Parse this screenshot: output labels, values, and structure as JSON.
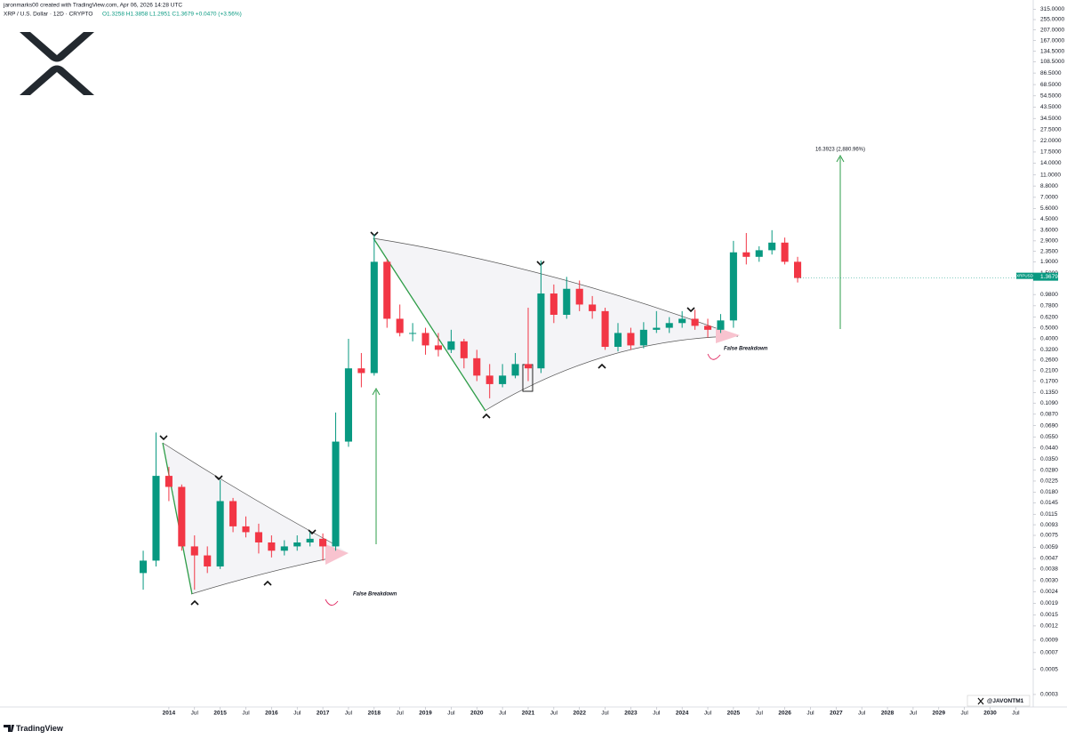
{
  "header": {
    "author_line": "jaronmarks00 created with TradingView.com, Apr 06, 2026 14:28 UTC",
    "symbol_line": "XRP / U.S. Dollar · 12D · CRYPTO",
    "ohlc_line": "O1.3258 H1.3858 L1.2951 C1.3679 +0.0470 (+3.56%)"
  },
  "chart_data": {
    "type": "candlestick",
    "log_y": true,
    "up_color": "#089981",
    "down_color": "#f23645",
    "x": [
      2013.5,
      2013.75,
      2014,
      2014.25,
      2014.5,
      2014.75,
      2015,
      2015.25,
      2015.5,
      2015.75,
      2016,
      2016.25,
      2016.5,
      2016.75,
      2017,
      2017.25,
      2017.5,
      2017.75,
      2018,
      2018.25,
      2018.5,
      2018.75,
      2019,
      2019.25,
      2019.5,
      2019.75,
      2020,
      2020.25,
      2020.5,
      2020.75,
      2021,
      2021.25,
      2021.5,
      2021.75,
      2022,
      2022.25,
      2022.5,
      2022.75,
      2023,
      2023.25,
      2023.5,
      2023.75,
      2024,
      2024.25,
      2024.5,
      2024.75,
      2025,
      2025.25,
      2025.5,
      2025.75,
      2026,
      2026.25
    ],
    "open": [
      0.0035,
      0.0045,
      0.025,
      0.02,
      0.006,
      0.005,
      0.004,
      0.015,
      0.009,
      0.008,
      0.0065,
      0.0055,
      0.006,
      0.0065,
      0.007,
      0.006,
      0.05,
      0.22,
      0.2,
      1.9,
      0.6,
      0.45,
      0.45,
      0.35,
      0.32,
      0.38,
      0.27,
      0.19,
      0.16,
      0.19,
      0.24,
      0.22,
      1.0,
      0.65,
      1.1,
      0.8,
      0.7,
      0.34,
      0.45,
      0.35,
      0.48,
      0.5,
      0.55,
      0.6,
      0.52,
      0.48,
      0.58,
      2.3,
      2.1,
      2.4,
      2.8,
      1.9
    ],
    "high": [
      0.0055,
      0.06,
      0.03,
      0.021,
      0.0075,
      0.006,
      0.023,
      0.016,
      0.011,
      0.0095,
      0.0075,
      0.0068,
      0.0075,
      0.008,
      0.0078,
      0.09,
      0.4,
      0.3,
      3.3,
      2.0,
      0.8,
      0.55,
      0.5,
      0.45,
      0.48,
      0.4,
      0.32,
      0.24,
      0.24,
      0.3,
      0.75,
      1.95,
      1.2,
      1.4,
      1.3,
      0.95,
      0.75,
      0.55,
      0.5,
      0.56,
      0.7,
      0.62,
      0.7,
      0.72,
      0.6,
      0.66,
      2.9,
      3.4,
      2.6,
      3.6,
      3.1,
      2.1
    ],
    "low": [
      0.0025,
      0.004,
      0.015,
      0.0055,
      0.0025,
      0.0035,
      0.0038,
      0.008,
      0.0072,
      0.0052,
      0.0048,
      0.005,
      0.0055,
      0.006,
      0.0045,
      0.0055,
      0.045,
      0.15,
      0.19,
      0.5,
      0.42,
      0.38,
      0.29,
      0.28,
      0.3,
      0.22,
      0.17,
      0.12,
      0.15,
      0.18,
      0.17,
      0.2,
      0.55,
      0.6,
      0.7,
      0.6,
      0.32,
      0.31,
      0.32,
      0.33,
      0.45,
      0.45,
      0.5,
      0.48,
      0.41,
      0.45,
      0.5,
      1.8,
      1.9,
      2.2,
      1.8,
      1.25
    ],
    "close": [
      0.0045,
      0.025,
      0.02,
      0.006,
      0.005,
      0.004,
      0.015,
      0.009,
      0.008,
      0.0065,
      0.0055,
      0.006,
      0.0065,
      0.007,
      0.006,
      0.05,
      0.22,
      0.2,
      1.9,
      0.6,
      0.45,
      0.45,
      0.35,
      0.32,
      0.38,
      0.27,
      0.19,
      0.16,
      0.19,
      0.24,
      0.22,
      1.0,
      0.65,
      1.1,
      0.8,
      0.7,
      0.34,
      0.45,
      0.35,
      0.48,
      0.5,
      0.55,
      0.6,
      0.52,
      0.48,
      0.58,
      2.3,
      2.1,
      2.4,
      2.8,
      1.9,
      1.3679
    ],
    "xlim": [
      2010.71,
      2030.84
    ],
    "xticks": [
      2014,
      {
        "value": 2014.5,
        "label": "Jul"
      },
      2015,
      {
        "value": 2015.5,
        "label": "Jul"
      },
      2016,
      {
        "value": 2016.5,
        "label": "Jul"
      },
      2017,
      {
        "value": 2017.5,
        "label": "Jul"
      },
      2018,
      {
        "value": 2018.5,
        "label": "Jul"
      },
      2019,
      {
        "value": 2019.5,
        "label": "Jul"
      },
      2020,
      {
        "value": 2020.5,
        "label": "Jul"
      },
      2021,
      {
        "value": 2021.5,
        "label": "Jul"
      },
      2022,
      {
        "value": 2022.5,
        "label": "Jul"
      },
      2023,
      {
        "value": 2023.5,
        "label": "Jul"
      },
      2024,
      {
        "value": 2024.5,
        "label": "Jul"
      },
      2025,
      {
        "value": 2025.5,
        "label": "Jul"
      },
      2026,
      {
        "value": 2026.5,
        "label": "Jul"
      },
      2027,
      {
        "value": 2027.5,
        "label": "Jul"
      },
      2028,
      {
        "value": 2028.5,
        "label": "Jul"
      },
      2029,
      {
        "value": 2029.5,
        "label": "Jul"
      },
      2030,
      {
        "value": 2030.5,
        "label": "Jul"
      }
    ],
    "ylim": [
      0.000233,
      379
    ],
    "yticks": [
      {
        "value": 315,
        "label": "315.0000"
      },
      {
        "value": 255,
        "label": "255.0000"
      },
      {
        "value": 207,
        "label": "207.0000"
      },
      {
        "value": 167,
        "label": "167.0000"
      },
      {
        "value": 134.5,
        "label": "134.5000"
      },
      {
        "value": 108.5,
        "label": "108.5000"
      },
      {
        "value": 86.5,
        "label": "86.5000"
      },
      {
        "value": 68.5,
        "label": "68.5000"
      },
      {
        "value": 54.5,
        "label": "54.5000"
      },
      {
        "value": 43.5,
        "label": "43.5000"
      },
      {
        "value": 34.5,
        "label": "34.5000"
      },
      {
        "value": 27.5,
        "label": "27.5000"
      },
      {
        "value": 22,
        "label": "22.0000"
      },
      {
        "value": 17.5,
        "label": "17.5000"
      },
      {
        "value": 14,
        "label": "14.0000"
      },
      {
        "value": 11,
        "label": "11.0000"
      },
      {
        "value": 8.8,
        "label": "8.8000"
      },
      {
        "value": 7,
        "label": "7.0000"
      },
      {
        "value": 5.6,
        "label": "5.6000"
      },
      {
        "value": 4.5,
        "label": "4.5000"
      },
      {
        "value": 3.6,
        "label": "3.6000"
      },
      {
        "value": 2.9,
        "label": "2.9000"
      },
      {
        "value": 2.35,
        "label": "2.3500"
      },
      {
        "value": 1.9,
        "label": "1.9000"
      },
      {
        "value": 1.5,
        "label": "1.5000"
      },
      {
        "value": 0.98,
        "label": "0.9800"
      },
      {
        "value": 0.78,
        "label": "0.7800"
      },
      {
        "value": 0.62,
        "label": "0.6200"
      },
      {
        "value": 0.5,
        "label": "0.5000"
      },
      {
        "value": 0.4,
        "label": "0.4000"
      },
      {
        "value": 0.32,
        "label": "0.3200"
      },
      {
        "value": 0.26,
        "label": "0.2600"
      },
      {
        "value": 0.21,
        "label": "0.2100"
      },
      {
        "value": 0.17,
        "label": "0.1700"
      },
      {
        "value": 0.135,
        "label": "0.1350"
      },
      {
        "value": 0.109,
        "label": "0.1090"
      },
      {
        "value": 0.087,
        "label": "0.0870"
      },
      {
        "value": 0.069,
        "label": "0.0690"
      },
      {
        "value": 0.055,
        "label": "0.0550"
      },
      {
        "value": 0.044,
        "label": "0.0440"
      },
      {
        "value": 0.035,
        "label": "0.0350"
      },
      {
        "value": 0.028,
        "label": "0.0280"
      },
      {
        "value": 0.0225,
        "label": "0.0225"
      },
      {
        "value": 0.018,
        "label": "0.0180"
      },
      {
        "value": 0.0145,
        "label": "0.0145"
      },
      {
        "value": 0.0115,
        "label": "0.0115"
      },
      {
        "value": 0.0093,
        "label": "0.0093"
      },
      {
        "value": 0.0075,
        "label": "0.0075"
      },
      {
        "value": 0.0059,
        "label": "0.0059"
      },
      {
        "value": 0.0047,
        "label": "0.0047"
      },
      {
        "value": 0.0038,
        "label": "0.0038"
      },
      {
        "value": 0.003,
        "label": "0.0030"
      },
      0.0024,
      0.0019,
      0.0015,
      0.0012,
      0.0009,
      0.0007,
      0.0005,
      0.0003
    ],
    "annotations": [
      "False Breakdown",
      "False Breakdown",
      "16.3923 (2,880.96%)"
    ],
    "symbol": "XRPUSD",
    "last_price": 1.3679
  },
  "footer": {
    "watermark": "@JAVONTM1",
    "brand": "TradingView"
  }
}
